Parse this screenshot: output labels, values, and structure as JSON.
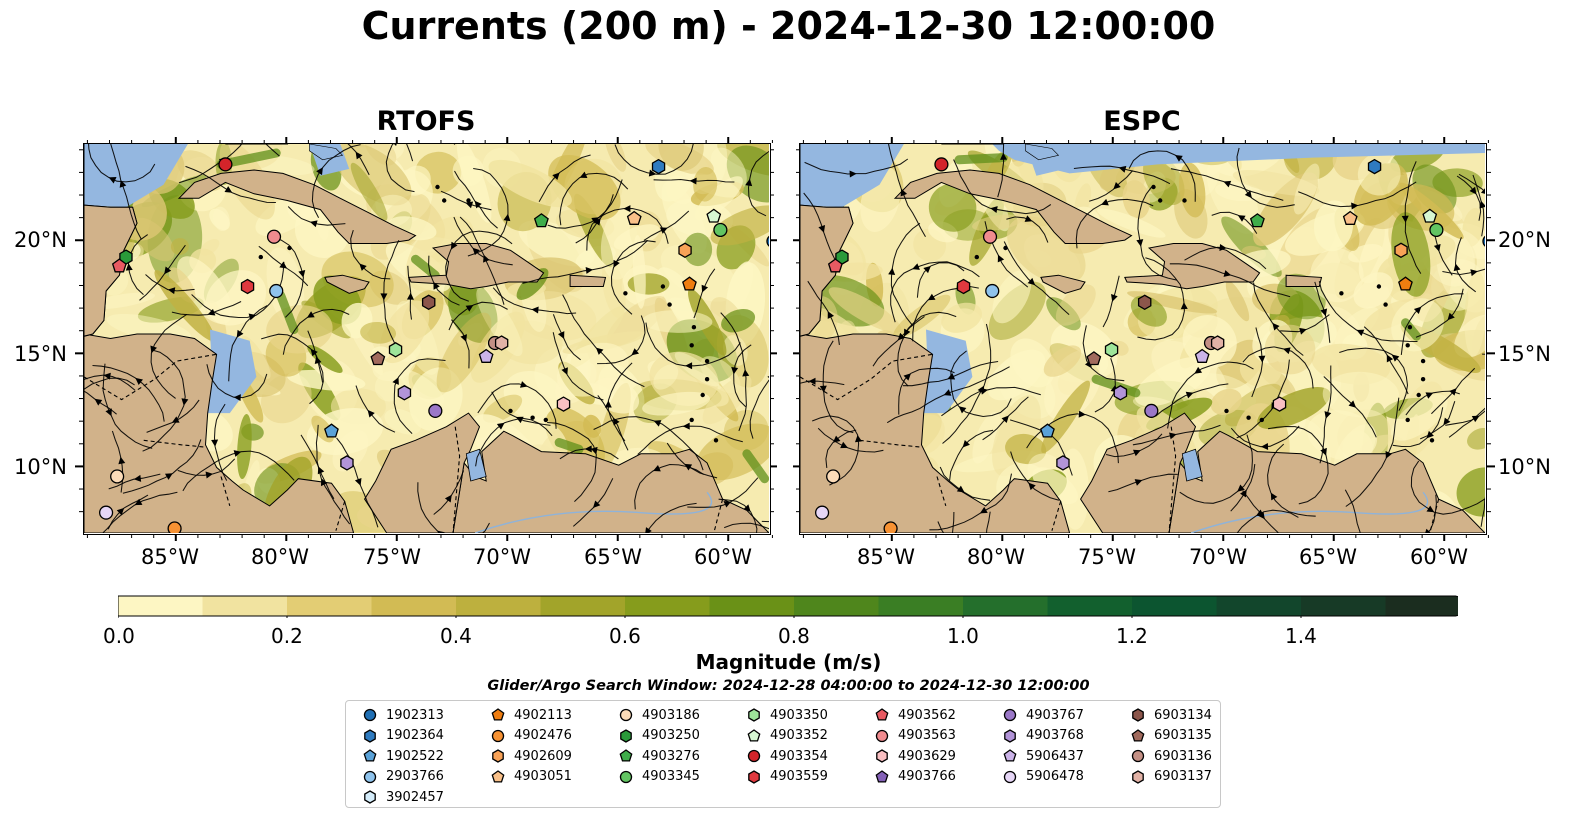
{
  "title": "Currents (200 m) - 2024-12-30 12:00:00",
  "panels": [
    {
      "title": "RTOFS"
    },
    {
      "title": "ESPC"
    }
  ],
  "lon_ticks": [
    "85°W",
    "80°W",
    "75°W",
    "70°W",
    "65°W",
    "60°W"
  ],
  "lat_ticks": [
    "20°N",
    "15°N",
    "10°N"
  ],
  "colorbar": {
    "label": "Magnitude (m/s)",
    "ticks": [
      "0.0",
      "0.2",
      "0.4",
      "0.6",
      "0.8",
      "1.0",
      "1.2",
      "1.4"
    ],
    "colors": [
      "#fdf6c3",
      "#f1e3a0",
      "#e3cd74",
      "#d2bb54",
      "#bdb03e",
      "#a2a42a",
      "#869c1c",
      "#6a9117",
      "#4f861c",
      "#3a7e24",
      "#246f2c",
      "#12602e",
      "#0c5530",
      "#12462c",
      "#173a26",
      "#1b2d1f"
    ]
  },
  "search_window": "Glider/Argo Search Window: 2024-12-28 04:00:00 to 2024-12-30 12:00:00",
  "legend": [
    {
      "id": "1902313",
      "marker": "circle",
      "color": "#1f6fb4"
    },
    {
      "id": "1902364",
      "marker": "hexagon",
      "color": "#2f7bc0"
    },
    {
      "id": "1902522",
      "marker": "pentagon",
      "color": "#5aa2d8"
    },
    {
      "id": "2903766",
      "marker": "circle",
      "color": "#8fc3ec"
    },
    {
      "id": "3902457",
      "marker": "hexagon",
      "color": "#d4ecfa"
    },
    {
      "id": "4902113",
      "marker": "pentagon",
      "color": "#ef7d10"
    },
    {
      "id": "4902476",
      "marker": "circle",
      "color": "#f79233"
    },
    {
      "id": "4902609",
      "marker": "hexagon",
      "color": "#f8a257"
    },
    {
      "id": "4903051",
      "marker": "pentagon",
      "color": "#f9c089"
    },
    {
      "id": "4903186",
      "marker": "circle",
      "color": "#fcdcb9"
    },
    {
      "id": "4903250",
      "marker": "hexagon",
      "color": "#2a9a3a"
    },
    {
      "id": "4903276",
      "marker": "pentagon",
      "color": "#3fad4a"
    },
    {
      "id": "4903345",
      "marker": "circle",
      "color": "#62c462"
    },
    {
      "id": "4903350",
      "marker": "hexagon",
      "color": "#9ee59a"
    },
    {
      "id": "4903352",
      "marker": "pentagon",
      "color": "#d7f7d2"
    },
    {
      "id": "4903354",
      "marker": "circle",
      "color": "#d3242a"
    },
    {
      "id": "4903559",
      "marker": "hexagon",
      "color": "#e0393f"
    },
    {
      "id": "4903562",
      "marker": "pentagon",
      "color": "#e85a62"
    },
    {
      "id": "4903563",
      "marker": "circle",
      "color": "#f08b8f"
    },
    {
      "id": "4903629",
      "marker": "hexagon",
      "color": "#f9bfc2"
    },
    {
      "id": "4903766",
      "marker": "pentagon",
      "color": "#8461b7"
    },
    {
      "id": "4903767",
      "marker": "circle",
      "color": "#9b78c8"
    },
    {
      "id": "4903768",
      "marker": "hexagon",
      "color": "#b294d8"
    },
    {
      "id": "5906437",
      "marker": "pentagon",
      "color": "#cbb3e8"
    },
    {
      "id": "5906478",
      "marker": "circle",
      "color": "#e6d6f6"
    },
    {
      "id": "6903134",
      "marker": "hexagon",
      "color": "#8c564b"
    },
    {
      "id": "6903135",
      "marker": "pentagon",
      "color": "#a16a5d"
    },
    {
      "id": "6903136",
      "marker": "circle",
      "color": "#c49085"
    },
    {
      "id": "6903137",
      "marker": "hexagon",
      "color": "#e2b2a6"
    }
  ],
  "positions": {
    "RTOFS": [
      {
        "id": "4903354",
        "lon": -82.8,
        "lat": 23.4
      },
      {
        "id": "1902364",
        "lon": -63.2,
        "lat": 23.3
      },
      {
        "id": "4903276",
        "lon": -68.5,
        "lat": 20.9
      },
      {
        "id": "4903051",
        "lon": -64.3,
        "lat": 21.0
      },
      {
        "id": "4903352",
        "lon": -60.7,
        "lat": 21.1
      },
      {
        "id": "4903345",
        "lon": -60.4,
        "lat": 20.5
      },
      {
        "id": "1902313",
        "lon": -58.0,
        "lat": 20.0
      },
      {
        "id": "4903563",
        "lon": -80.6,
        "lat": 20.2
      },
      {
        "id": "4903250",
        "lon": -87.3,
        "lat": 19.3
      },
      {
        "id": "4903562",
        "lon": -87.6,
        "lat": 18.9
      },
      {
        "id": "4902609",
        "lon": -62.0,
        "lat": 19.6
      },
      {
        "id": "4902113",
        "lon": -61.8,
        "lat": 18.1
      },
      {
        "id": "4903559",
        "lon": -81.8,
        "lat": 18.0
      },
      {
        "id": "2903766",
        "lon": -80.5,
        "lat": 17.8
      },
      {
        "id": "6903134",
        "lon": -73.6,
        "lat": 17.3
      },
      {
        "id": "4903350",
        "lon": -75.1,
        "lat": 15.2
      },
      {
        "id": "6903135",
        "lon": -75.9,
        "lat": 14.8
      },
      {
        "id": "6903136",
        "lon": -70.6,
        "lat": 15.5
      },
      {
        "id": "6903137",
        "lon": -70.3,
        "lat": 15.5
      },
      {
        "id": "5906437",
        "lon": -71.0,
        "lat": 14.9
      },
      {
        "id": "4903768",
        "lon": -74.7,
        "lat": 13.3
      },
      {
        "id": "4903767",
        "lon": -73.3,
        "lat": 12.5
      },
      {
        "id": "4903629",
        "lon": -67.5,
        "lat": 12.8
      },
      {
        "id": "1902522",
        "lon": -78.0,
        "lat": 11.6
      },
      {
        "id": "4903768",
        "lon": -77.3,
        "lat": 10.2
      },
      {
        "id": "4903186",
        "lon": -87.7,
        "lat": 9.6
      },
      {
        "id": "5906478",
        "lon": -88.2,
        "lat": 8.0
      },
      {
        "id": "4902476",
        "lon": -85.1,
        "lat": 7.3
      }
    ],
    "ESPC": [
      {
        "id": "4903354",
        "lon": -82.8,
        "lat": 23.4
      },
      {
        "id": "1902364",
        "lon": -63.2,
        "lat": 23.3
      },
      {
        "id": "4903276",
        "lon": -68.5,
        "lat": 20.9
      },
      {
        "id": "4903051",
        "lon": -64.3,
        "lat": 21.0
      },
      {
        "id": "4903352",
        "lon": -60.7,
        "lat": 21.1
      },
      {
        "id": "4903345",
        "lon": -60.4,
        "lat": 20.5
      },
      {
        "id": "1902313",
        "lon": -58.0,
        "lat": 20.0
      },
      {
        "id": "4903563",
        "lon": -80.6,
        "lat": 20.2
      },
      {
        "id": "4903250",
        "lon": -87.3,
        "lat": 19.3
      },
      {
        "id": "4903562",
        "lon": -87.6,
        "lat": 18.9
      },
      {
        "id": "4902609",
        "lon": -62.0,
        "lat": 19.6
      },
      {
        "id": "4902113",
        "lon": -61.8,
        "lat": 18.1
      },
      {
        "id": "4903559",
        "lon": -81.8,
        "lat": 18.0
      },
      {
        "id": "2903766",
        "lon": -80.5,
        "lat": 17.8
      },
      {
        "id": "6903134",
        "lon": -73.6,
        "lat": 17.3
      },
      {
        "id": "4903350",
        "lon": -75.1,
        "lat": 15.2
      },
      {
        "id": "6903135",
        "lon": -75.9,
        "lat": 14.8
      },
      {
        "id": "6903136",
        "lon": -70.6,
        "lat": 15.5
      },
      {
        "id": "6903137",
        "lon": -70.3,
        "lat": 15.5
      },
      {
        "id": "5906437",
        "lon": -71.0,
        "lat": 14.9
      },
      {
        "id": "4903768",
        "lon": -74.7,
        "lat": 13.3
      },
      {
        "id": "4903767",
        "lon": -73.3,
        "lat": 12.5
      },
      {
        "id": "4903629",
        "lon": -67.5,
        "lat": 12.8
      },
      {
        "id": "1902522",
        "lon": -78.0,
        "lat": 11.6
      },
      {
        "id": "4903768",
        "lon": -77.3,
        "lat": 10.2
      },
      {
        "id": "4903186",
        "lon": -87.7,
        "lat": 9.6
      },
      {
        "id": "5906478",
        "lon": -88.2,
        "lat": 8.0
      },
      {
        "id": "4902476",
        "lon": -85.1,
        "lat": 7.3
      }
    ]
  }
}
